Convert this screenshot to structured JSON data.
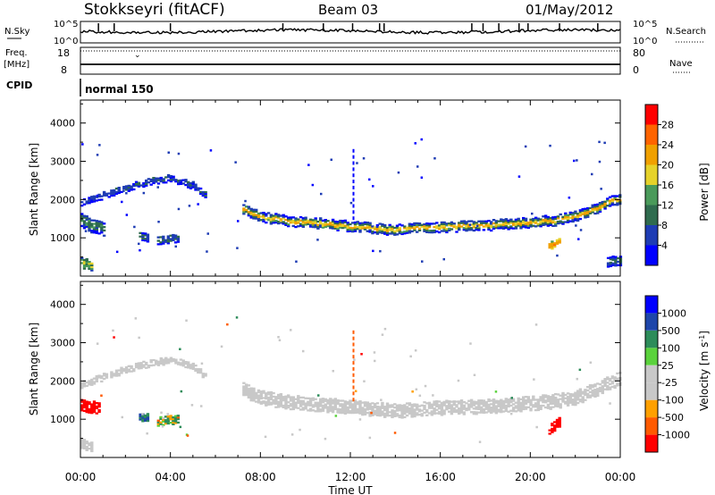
{
  "header": {
    "station": "Stokkseyri (fitACF)",
    "beam": "Beam 03",
    "date": "01/May/2012"
  },
  "params_panels": {
    "nsky_label": "N.Sky",
    "nsky_ticks": [
      "10^5",
      "10^0"
    ],
    "nsearch_label": "N.Search",
    "nsearch_ticks": [
      "10^5",
      "10^0"
    ],
    "freq_label": "Freq.",
    "freq_unit": "[MHz]",
    "freq_ticks": [
      "18",
      "8"
    ],
    "nave_label": "Nave",
    "nave_ticks": [
      "80",
      "0"
    ],
    "cpid_label": "CPID",
    "cpid_value": "normal 150"
  },
  "colors": {
    "power": [
      "#0000ff",
      "#1e3cb4",
      "#2f6b4e",
      "#4a9a5a",
      "#e6d22a",
      "#f0a000",
      "#ff6400",
      "#ff0000"
    ],
    "velocity": [
      "#ff0000",
      "#ff5a00",
      "#ffa000",
      "#c8c8c8",
      "#c8c8c8",
      "#5ad23c",
      "#2d8c5a",
      "#1e46aa",
      "#0000ff"
    ],
    "ground": "#c8c8c8"
  },
  "chart_data": [
    {
      "type": "heatmap",
      "title": "Power",
      "xlabel": "Time UT",
      "ylabel": "Slant Range [km]",
      "xlim": [
        "00:00",
        "24:00"
      ],
      "ylim": [
        0,
        4600
      ],
      "x_ticks": [
        "00:00",
        "04:00",
        "08:00",
        "12:00",
        "16:00",
        "20:00",
        "00:00"
      ],
      "y_ticks": [
        "1000",
        "2000",
        "3000",
        "4000"
      ],
      "colorbar_label": "Power [dB]",
      "colorbar_ticks": [
        "4",
        "8",
        "12",
        "16",
        "20",
        "24",
        "28"
      ],
      "colorbar_range": [
        0,
        32
      ],
      "features": [
        {
          "name": "main_band",
          "times_h": [
            7.2,
            8,
            9,
            10,
            11,
            12,
            13,
            14,
            15,
            16,
            17,
            18,
            19,
            20,
            21,
            22,
            23,
            24
          ],
          "range_km": [
            1750,
            1550,
            1450,
            1400,
            1350,
            1300,
            1250,
            1200,
            1250,
            1280,
            1300,
            1320,
            1350,
            1400,
            1450,
            1550,
            1800,
            2050
          ],
          "width_km": 260,
          "power_db": 10,
          "core_power_db": 20
        },
        {
          "name": "early_band",
          "times_h": [
            0,
            1,
            2,
            3,
            4,
            5,
            5.6
          ],
          "range_km": [
            1900,
            2100,
            2300,
            2450,
            2550,
            2350,
            2050
          ],
          "width_km": 160,
          "power_db": 6
        },
        {
          "name": "early_low",
          "times_h": [
            0,
            0.5,
            1
          ],
          "range_km": [
            1450,
            1300,
            1200
          ],
          "width_km": 350,
          "power_db": 10
        },
        {
          "name": "patch_2h40",
          "times_h": [
            2.6,
            3.0
          ],
          "range_km": [
            1050,
            1000
          ],
          "width_km": 200,
          "power_db": 9
        },
        {
          "name": "patch_3h40",
          "times_h": [
            3.4,
            4.3
          ],
          "range_km": [
            950,
            1000
          ],
          "width_km": 220,
          "power_db": 7
        },
        {
          "name": "patch_21h",
          "times_h": [
            20.8,
            21.3
          ],
          "range_km": [
            800,
            900
          ],
          "width_km": 200,
          "power_db": 22
        },
        {
          "name": "near_range",
          "times_h": [
            0,
            0.5
          ],
          "range_km": [
            350,
            250
          ],
          "width_km": 250,
          "power_db": 14
        },
        {
          "name": "near_range_late",
          "times_h": [
            23.4,
            24
          ],
          "range_km": [
            350,
            400
          ],
          "width_km": 250,
          "power_db": 8
        }
      ]
    },
    {
      "type": "heatmap",
      "title": "Velocity",
      "xlabel": "Time UT",
      "ylabel": "Slant Range [km]",
      "xlim": [
        "00:00",
        "24:00"
      ],
      "ylim": [
        0,
        4600
      ],
      "x_ticks": [
        "00:00",
        "04:00",
        "08:00",
        "12:00",
        "16:00",
        "20:00",
        "00:00"
      ],
      "y_ticks": [
        "1000",
        "2000",
        "3000",
        "4000"
      ],
      "colorbar_label": "Velocity [m s^-1]",
      "colorbar_ticks": [
        "1000",
        "500",
        "100",
        "25",
        "-25",
        "-100",
        "-500",
        "-1000"
      ],
      "features": [
        {
          "name": "ground_band",
          "times_h": [
            7.2,
            8,
            9,
            10,
            11,
            12,
            13,
            14,
            15,
            16,
            17,
            18,
            19,
            20,
            21,
            22,
            23,
            24
          ],
          "range_km": [
            1750,
            1550,
            1450,
            1400,
            1350,
            1300,
            1250,
            1200,
            1250,
            1280,
            1300,
            1320,
            1350,
            1400,
            1450,
            1550,
            1800,
            2050
          ],
          "width_km": 330,
          "velocity_ms": 0
        },
        {
          "name": "early_band",
          "times_h": [
            0,
            1,
            2,
            3,
            4,
            5,
            5.6
          ],
          "range_km": [
            1900,
            2100,
            2300,
            2450,
            2550,
            2350,
            2050
          ],
          "width_km": 160,
          "velocity_ms": 0
        },
        {
          "name": "early_red",
          "times_h": [
            0,
            0.8
          ],
          "range_km": [
            1350,
            1300
          ],
          "width_km": 300,
          "velocity_ms": -700
        },
        {
          "name": "patch_2h40",
          "times_h": [
            2.6,
            3.0
          ],
          "range_km": [
            1050,
            1000
          ],
          "width_km": 200,
          "velocity_ms": 500
        },
        {
          "name": "patch_3h40",
          "times_h": [
            3.4,
            4.3
          ],
          "range_km": [
            950,
            1000
          ],
          "width_km": 220,
          "velocity_ms": 80
        },
        {
          "name": "patch_21h",
          "times_h": [
            20.8,
            21.3
          ],
          "range_km": [
            750,
            900
          ],
          "width_km": 250,
          "velocity_ms": -800
        },
        {
          "name": "near_range",
          "times_h": [
            0,
            0.5
          ],
          "range_km": [
            350,
            250
          ],
          "width_km": 250,
          "velocity_ms": 0
        }
      ]
    }
  ]
}
